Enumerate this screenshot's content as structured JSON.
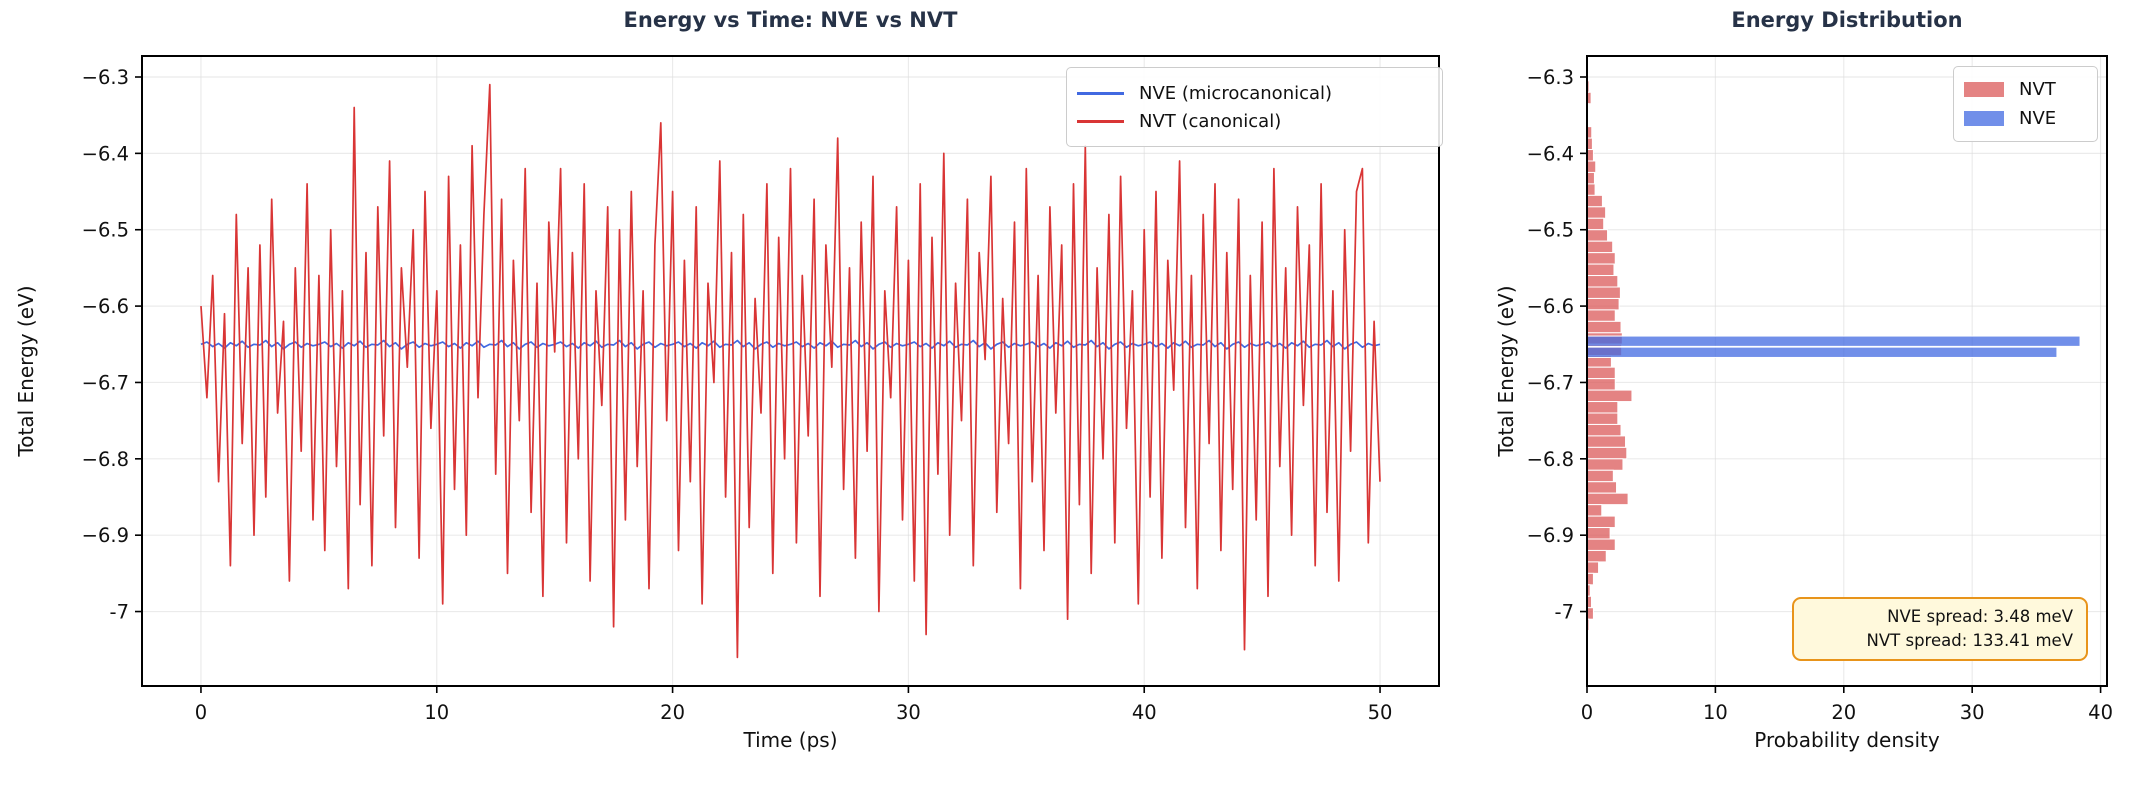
{
  "figure": {
    "background": "#ffffff",
    "spine_color": "#000000",
    "grid_color": "#dcdcdc"
  },
  "chart_data": [
    {
      "type": "line",
      "title": "Energy vs Time: NVE vs NVT",
      "xlabel": "Time (ps)",
      "ylabel": "Total Energy (eV)",
      "xlim": [
        -2.5,
        52.5
      ],
      "ylim": [
        -7.0975,
        -6.2725
      ],
      "xticks": [
        0,
        10,
        20,
        30,
        40,
        50
      ],
      "yticks": [
        -6.3,
        -6.4,
        -6.5,
        -6.6,
        -6.7,
        -6.8,
        -6.9,
        -7.0
      ],
      "grid": true,
      "legend": {
        "position": "upper right",
        "items": [
          {
            "label": "NVE (microcanonical)",
            "color": "#4169e1"
          },
          {
            "label": "NVT (canonical)",
            "color": "#d93535"
          }
        ]
      },
      "x_start": 0,
      "x_end": 50,
      "series": [
        {
          "name": "NVE (microcanonical)",
          "color": "#4169e1",
          "linewidth": 1.7,
          "values": [
            -6.65,
            -6.647,
            -6.653,
            -6.649,
            -6.655,
            -6.648,
            -6.652,
            -6.646,
            -6.654,
            -6.65,
            -6.651,
            -6.645,
            -6.653,
            -6.648,
            -6.656,
            -6.65,
            -6.647,
            -6.654,
            -6.649,
            -6.652,
            -6.65,
            -6.647,
            -6.653,
            -6.649,
            -6.655,
            -6.648,
            -6.652,
            -6.646,
            -6.654,
            -6.65,
            -6.651,
            -6.645,
            -6.653,
            -6.648,
            -6.656,
            -6.65,
            -6.647,
            -6.654,
            -6.649,
            -6.652,
            -6.65,
            -6.647,
            -6.653,
            -6.649,
            -6.655,
            -6.648,
            -6.652,
            -6.646,
            -6.654,
            -6.65,
            -6.651,
            -6.645,
            -6.653,
            -6.648,
            -6.656,
            -6.65,
            -6.647,
            -6.654,
            -6.649,
            -6.652,
            -6.65,
            -6.647,
            -6.653,
            -6.649,
            -6.655,
            -6.648,
            -6.652,
            -6.646,
            -6.654,
            -6.65,
            -6.651,
            -6.645,
            -6.653,
            -6.648,
            -6.656,
            -6.65,
            -6.647,
            -6.654,
            -6.649,
            -6.652,
            -6.65,
            -6.647,
            -6.653,
            -6.649,
            -6.655,
            -6.648,
            -6.652,
            -6.646,
            -6.654,
            -6.65,
            -6.651,
            -6.645,
            -6.653,
            -6.648,
            -6.656,
            -6.65,
            -6.647,
            -6.654,
            -6.649,
            -6.652,
            -6.65,
            -6.647,
            -6.653,
            -6.649,
            -6.655,
            -6.648,
            -6.652,
            -6.646,
            -6.654,
            -6.65,
            -6.651,
            -6.645,
            -6.653,
            -6.648,
            -6.656,
            -6.65,
            -6.647,
            -6.654,
            -6.649,
            -6.652,
            -6.65,
            -6.647,
            -6.653,
            -6.649,
            -6.655,
            -6.648,
            -6.652,
            -6.646,
            -6.654,
            -6.65,
            -6.651,
            -6.645,
            -6.653,
            -6.648,
            -6.656,
            -6.65,
            -6.647,
            -6.654,
            -6.649,
            -6.652,
            -6.65,
            -6.647,
            -6.653,
            -6.649,
            -6.655,
            -6.648,
            -6.652,
            -6.646,
            -6.654,
            -6.65,
            -6.651,
            -6.645,
            -6.653,
            -6.648,
            -6.656,
            -6.65,
            -6.647,
            -6.654,
            -6.649,
            -6.652,
            -6.65,
            -6.647,
            -6.653,
            -6.649,
            -6.655,
            -6.648,
            -6.652,
            -6.646,
            -6.654,
            -6.65,
            -6.651,
            -6.645,
            -6.653,
            -6.648,
            -6.656,
            -6.65,
            -6.647,
            -6.654,
            -6.649,
            -6.652,
            -6.65,
            -6.647,
            -6.653,
            -6.649,
            -6.655,
            -6.648,
            -6.652,
            -6.646,
            -6.654,
            -6.65,
            -6.651,
            -6.645,
            -6.653,
            -6.648,
            -6.656,
            -6.65,
            -6.647,
            -6.654,
            -6.649,
            -6.652,
            -6.65
          ]
        },
        {
          "name": "NVT (canonical)",
          "color": "#d93535",
          "linewidth": 1.7,
          "values": [
            -6.6,
            -6.72,
            -6.56,
            -6.83,
            -6.61,
            -6.94,
            -6.48,
            -6.78,
            -6.55,
            -6.9,
            -6.52,
            -6.85,
            -6.46,
            -6.74,
            -6.62,
            -6.96,
            -6.55,
            -6.79,
            -6.44,
            -6.88,
            -6.56,
            -6.92,
            -6.5,
            -6.81,
            -6.58,
            -6.97,
            -6.34,
            -6.86,
            -6.53,
            -6.94,
            -6.47,
            -6.77,
            -6.41,
            -6.89,
            -6.55,
            -6.68,
            -6.5,
            -6.93,
            -6.45,
            -6.76,
            -6.58,
            -6.99,
            -6.43,
            -6.84,
            -6.52,
            -6.9,
            -6.39,
            -6.72,
            -6.48,
            -6.31,
            -6.82,
            -6.46,
            -6.95,
            -6.54,
            -6.75,
            -6.42,
            -6.87,
            -6.57,
            -6.98,
            -6.49,
            -6.66,
            -6.42,
            -6.91,
            -6.53,
            -6.8,
            -6.44,
            -6.96,
            -6.58,
            -6.73,
            -6.47,
            -7.02,
            -6.5,
            -6.88,
            -6.45,
            -6.81,
            -6.58,
            -6.97,
            -6.52,
            -6.36,
            -6.75,
            -6.45,
            -6.92,
            -6.54,
            -6.83,
            -6.47,
            -6.99,
            -6.57,
            -6.7,
            -6.41,
            -6.85,
            -6.53,
            -7.06,
            -6.48,
            -6.89,
            -6.59,
            -6.74,
            -6.44,
            -6.95,
            -6.51,
            -6.8,
            -6.42,
            -6.91,
            -6.56,
            -6.77,
            -6.46,
            -6.98,
            -6.52,
            -6.68,
            -6.38,
            -6.84,
            -6.55,
            -6.93,
            -6.49,
            -6.79,
            -6.43,
            -7.0,
            -6.58,
            -6.72,
            -6.47,
            -6.88,
            -6.54,
            -6.96,
            -6.44,
            -7.03,
            -6.51,
            -6.82,
            -6.4,
            -6.9,
            -6.57,
            -6.75,
            -6.46,
            -6.94,
            -6.53,
            -6.67,
            -6.43,
            -6.87,
            -6.59,
            -6.78,
            -6.49,
            -6.97,
            -6.42,
            -6.83,
            -6.56,
            -6.92,
            -6.47,
            -6.74,
            -6.52,
            -7.01,
            -6.44,
            -6.86,
            -6.39,
            -6.95,
            -6.55,
            -6.8,
            -6.48,
            -6.91,
            -6.43,
            -6.76,
            -6.58,
            -6.99,
            -6.5,
            -6.85,
            -6.45,
            -6.93,
            -6.54,
            -6.71,
            -6.41,
            -6.89,
            -6.56,
            -6.97,
            -6.48,
            -6.78,
            -6.44,
            -6.92,
            -6.53,
            -6.84,
            -6.46,
            -7.05,
            -6.56,
            -6.88,
            -6.49,
            -6.98,
            -6.42,
            -6.81,
            -6.55,
            -6.9,
            -6.47,
            -6.73,
            -6.52,
            -6.94,
            -6.44,
            -6.87,
            -6.58,
            -6.96,
            -6.5,
            -6.79,
            -6.45,
            -6.42,
            -6.91,
            -6.62,
            -6.83
          ]
        }
      ]
    },
    {
      "type": "bar",
      "orientation": "horizontal",
      "title": "Energy Distribution",
      "xlabel": "Probability density",
      "ylabel": "Total Energy (eV)",
      "xlim": [
        0,
        40.5
      ],
      "ylim": [
        -7.0975,
        -6.2725
      ],
      "xticks": [
        0,
        10,
        20,
        30,
        40
      ],
      "yticks": [
        -6.3,
        -6.4,
        -6.5,
        -6.6,
        -6.7,
        -6.8,
        -6.9,
        -7.0
      ],
      "grid": true,
      "legend": {
        "position": "upper right",
        "items": [
          {
            "label": "NVT",
            "color": "rgba(217,83,83,0.72)"
          },
          {
            "label": "NVE",
            "color": "rgba(65,105,225,0.75)"
          }
        ]
      },
      "nvt_hist": {
        "color": "rgba(217,83,83,0.72)",
        "edge_color": "#ffffff",
        "bin_top": -6.305,
        "bin_width": 0.015,
        "densities": [
          0.16,
          0.32,
          0.11,
          0.0,
          0.37,
          0.42,
          0.5,
          0.68,
          0.58,
          0.63,
          1.2,
          1.45,
          1.3,
          1.6,
          2.0,
          2.2,
          2.1,
          2.4,
          2.6,
          2.5,
          2.2,
          2.65,
          2.75,
          2.7,
          1.9,
          2.2,
          2.2,
          3.5,
          2.4,
          2.4,
          2.65,
          3.0,
          3.1,
          2.8,
          2.05,
          2.3,
          3.2,
          1.15,
          2.2,
          1.8,
          2.2,
          1.5,
          0.9,
          0.5,
          0.25,
          0.35,
          0.5,
          0.15,
          0.1,
          0.1
        ]
      },
      "nve_hist": {
        "color": "rgba(65,105,225,0.75)",
        "edge_color": "#ffffff",
        "bin_height": 0.0135,
        "centers": [
          -6.646,
          -6.6605
        ],
        "densities": [
          38.4,
          36.6
        ]
      },
      "annotation": {
        "line1": "NVE spread: 3.48 meV",
        "line2": "NVT spread: 133.41 meV",
        "bg": "#fff9dc",
        "border": "#e8941a"
      }
    }
  ]
}
